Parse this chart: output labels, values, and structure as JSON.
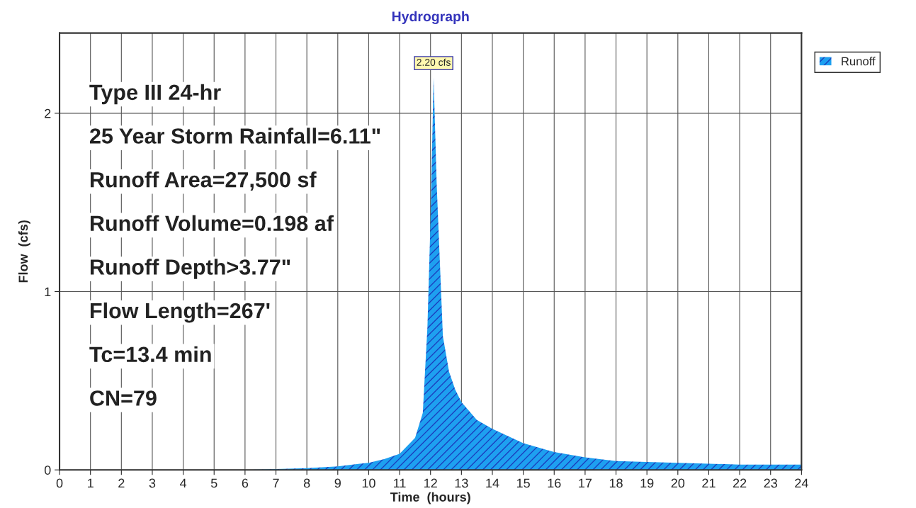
{
  "chart_data": {
    "type": "area",
    "title": "Hydrograph",
    "xlabel": "Time  (hours)",
    "ylabel": "Flow  (cfs)",
    "x": [
      0,
      2,
      4,
      6,
      8,
      9,
      10,
      10.5,
      11,
      11.5,
      11.75,
      11.9,
      12.0,
      12.1,
      12.2,
      12.4,
      12.6,
      12.8,
      13.0,
      13.5,
      14,
      15,
      16,
      17,
      18,
      20,
      22,
      24
    ],
    "series": [
      {
        "name": "Runoff",
        "color": "#1ea0f0",
        "values": [
          0,
          0,
          0,
          0,
          0.01,
          0.02,
          0.04,
          0.06,
          0.09,
          0.18,
          0.32,
          0.8,
          1.4,
          2.2,
          1.6,
          0.75,
          0.55,
          0.45,
          0.38,
          0.28,
          0.23,
          0.15,
          0.1,
          0.07,
          0.05,
          0.04,
          0.03,
          0.03
        ]
      }
    ],
    "xlim": [
      0,
      24
    ],
    "ylim": [
      0,
      2.45
    ],
    "xticks": [
      0,
      1,
      2,
      3,
      4,
      5,
      6,
      7,
      8,
      9,
      10,
      11,
      12,
      13,
      14,
      15,
      16,
      17,
      18,
      19,
      20,
      21,
      22,
      23,
      24
    ],
    "yticks": [
      0,
      1,
      2
    ],
    "grid": true,
    "legend": "top right",
    "annotations": [
      {
        "text": "2.20 cfs",
        "x": 12.1,
        "y": 2.2
      },
      "Type III 24-hr",
      "25 Year Storm Rainfall=6.11\"",
      "Runoff Area=27,500 sf",
      "Runoff Volume=0.198 af",
      "Runoff Depth>3.77\"",
      "Flow Length=267'",
      "Tc=13.4 min",
      "CN=79"
    ]
  }
}
